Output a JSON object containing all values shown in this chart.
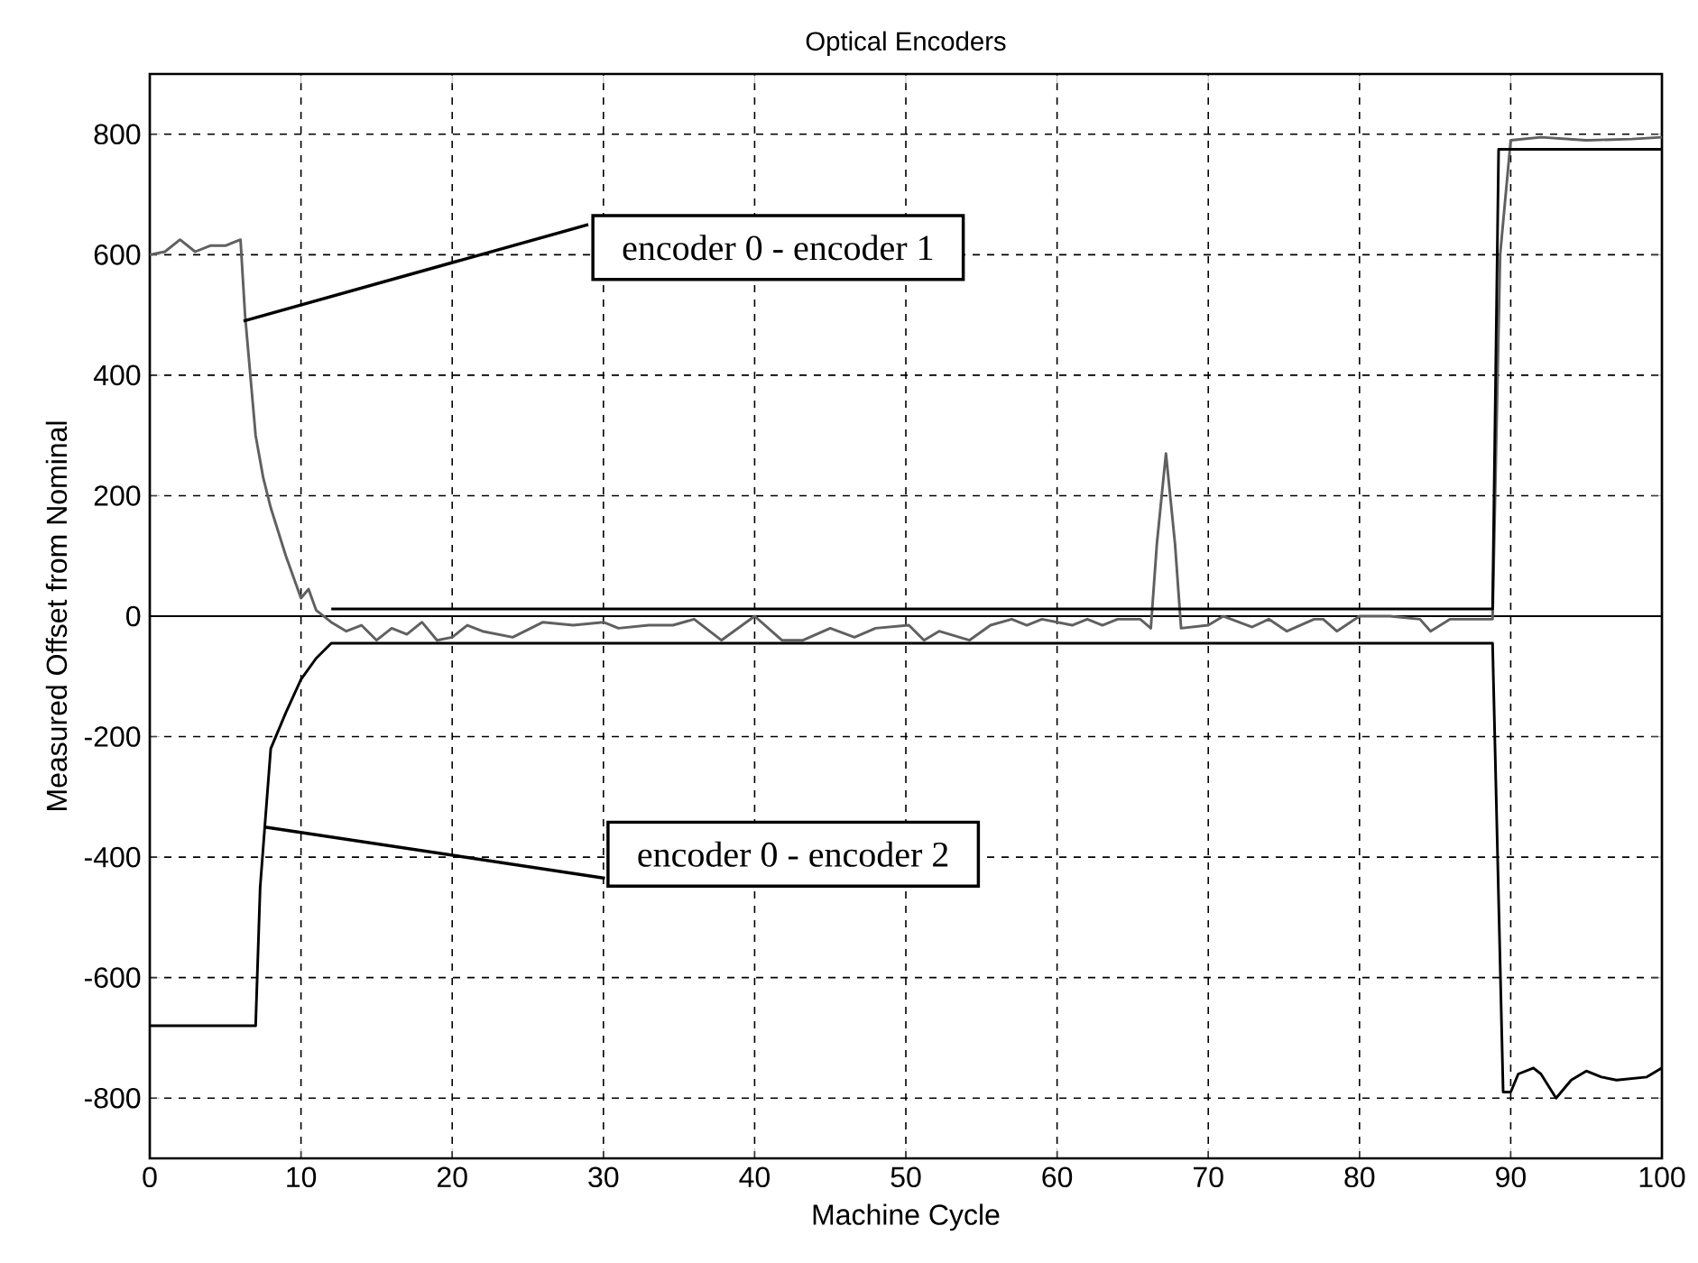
{
  "chart_data": {
    "type": "line",
    "title": "Optical Encoders",
    "xlabel": "Machine Cycle",
    "ylabel": "Measured Offset from Nominal",
    "xlim": [
      0,
      100
    ],
    "ylim": [
      -900,
      900
    ],
    "xticks": [
      0,
      10,
      20,
      30,
      40,
      50,
      60,
      70,
      80,
      90,
      100
    ],
    "yticks": [
      -800,
      -600,
      -400,
      -200,
      0,
      200,
      400,
      600,
      800
    ],
    "grid": true,
    "marker": "none",
    "line_style": "solid",
    "ref_lines": [
      {
        "axis": "y",
        "value": 0,
        "color": "#000000"
      }
    ],
    "annotations": [
      {
        "text": "encoder 0 - encoder 1",
        "x": 6.2,
        "y": 490
      },
      {
        "text": "encoder 0 - encoder 2",
        "x": 7.6,
        "y": -350
      }
    ],
    "series": [
      {
        "color": "#606060",
        "x": [
          0,
          1,
          2,
          3,
          4,
          5,
          6,
          6.3,
          7,
          7.5,
          8,
          9,
          10,
          10.5,
          11,
          12,
          13,
          14,
          15,
          16,
          17,
          18,
          19,
          20,
          21,
          22,
          24,
          26,
          28,
          30,
          31,
          33,
          34.6,
          36,
          37.8,
          40,
          41.8,
          43.2,
          45,
          46.6,
          48,
          50.2,
          51.2,
          52.2,
          54.2,
          55.6,
          57,
          58,
          59,
          61,
          62,
          63,
          64,
          65.5,
          66.2,
          66.6,
          67.2,
          67.8,
          68.2,
          70,
          71,
          72.9,
          74,
          75.2,
          77,
          77.6,
          78.5,
          80,
          82,
          84,
          84.7,
          86,
          88.8,
          89.3,
          90,
          92,
          95,
          98,
          100
        ],
        "values": [
          600,
          605,
          625,
          605,
          615,
          615,
          625,
          500,
          300,
          230,
          180,
          100,
          30,
          45,
          10,
          -10,
          -25,
          -15,
          -40,
          -20,
          -30,
          -10,
          -40,
          -35,
          -15,
          -25,
          -35,
          -10,
          -15,
          -10,
          -20,
          -15,
          -15,
          -5,
          -40,
          0,
          -40,
          -40,
          -20,
          -35,
          -20,
          -15,
          -40,
          -25,
          -40,
          -15,
          -5,
          -15,
          -5,
          -15,
          -5,
          -15,
          -5,
          -5,
          -20,
          120,
          270,
          120,
          -20,
          -15,
          0,
          -18,
          -5,
          -25,
          -5,
          -5,
          -25,
          0,
          0,
          -5,
          -25,
          -5,
          -5,
          600,
          790,
          795,
          790,
          792,
          795
        ]
      },
      {
        "color": "#000000",
        "x": [
          12,
          88.8,
          89.2,
          100
        ],
        "values": [
          12,
          12,
          775,
          775
        ]
      },
      {
        "color": "#000000",
        "x": [
          0,
          7,
          7.3,
          8,
          9,
          10,
          11,
          12,
          88.8,
          89.5,
          90,
          90.5,
          91.5,
          92,
          93,
          94,
          95,
          96,
          97,
          99,
          100
        ],
        "values": [
          -680,
          -680,
          -450,
          -220,
          -160,
          -105,
          -70,
          -45,
          -45,
          -790,
          -790,
          -760,
          -750,
          -760,
          -800,
          -770,
          -755,
          -765,
          -770,
          -765,
          -750
        ]
      }
    ]
  }
}
